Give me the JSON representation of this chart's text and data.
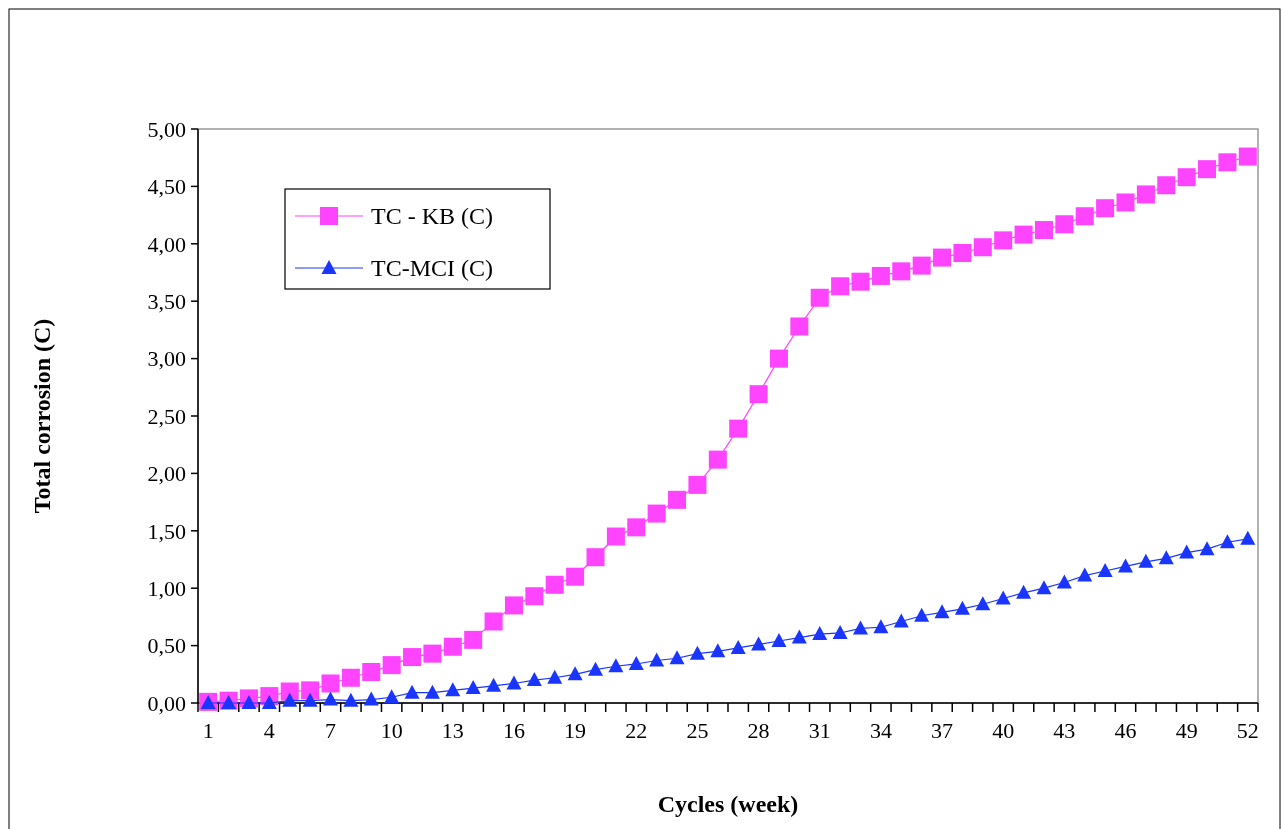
{
  "chart_data": {
    "type": "line",
    "xlabel": "Cycles (week)",
    "ylabel": "Total corrosion (C)",
    "categories": [
      "1",
      null,
      null,
      "4",
      null,
      null,
      "7",
      null,
      null,
      "10",
      null,
      null,
      "13",
      null,
      null,
      "16",
      null,
      null,
      "19",
      null,
      null,
      "22",
      null,
      null,
      "25",
      null,
      null,
      "28",
      null,
      null,
      "31",
      null,
      null,
      "34",
      null,
      null,
      "37",
      null,
      null,
      "40",
      null,
      null,
      "43",
      null,
      null,
      "46",
      null,
      null,
      "49",
      null,
      null,
      "52"
    ],
    "series": [
      {
        "name": "TC - KB (C)",
        "color": "#ff44ff",
        "marker": "square",
        "values": [
          0.01,
          0.02,
          0.04,
          0.06,
          0.1,
          0.11,
          0.17,
          0.22,
          0.27,
          0.33,
          0.4,
          0.43,
          0.49,
          0.55,
          0.71,
          0.85,
          0.93,
          1.03,
          1.1,
          1.27,
          1.45,
          1.53,
          1.65,
          1.77,
          1.9,
          2.12,
          2.39,
          2.69,
          3.0,
          3.28,
          3.53,
          3.63,
          3.67,
          3.72,
          3.76,
          3.81,
          3.88,
          3.92,
          3.97,
          4.03,
          4.08,
          4.12,
          4.17,
          4.24,
          4.31,
          4.36,
          4.43,
          4.51,
          4.58,
          4.65,
          4.71,
          4.76
        ]
      },
      {
        "name": "TC-MCI (C)",
        "color": "#1a35ff",
        "marker": "triangle",
        "values": [
          0,
          0,
          0,
          0,
          0.02,
          0.02,
          0.03,
          0.02,
          0.03,
          0.05,
          0.09,
          0.09,
          0.11,
          0.13,
          0.15,
          0.17,
          0.2,
          0.22,
          0.25,
          0.29,
          0.32,
          0.34,
          0.37,
          0.39,
          0.43,
          0.45,
          0.48,
          0.51,
          0.54,
          0.57,
          0.6,
          0.61,
          0.65,
          0.66,
          0.71,
          0.76,
          0.79,
          0.82,
          0.86,
          0.91,
          0.96,
          1.0,
          1.05,
          1.11,
          1.15,
          1.19,
          1.23,
          1.26,
          1.31,
          1.34,
          1.4,
          1.43
        ]
      }
    ],
    "ylim": [
      0,
      5
    ],
    "yticks": [
      {
        "value": 0,
        "label": "0,00"
      },
      {
        "value": 0.5,
        "label": "0,50"
      },
      {
        "value": 1,
        "label": "1,00"
      },
      {
        "value": 1.5,
        "label": "1,50"
      },
      {
        "value": 2,
        "label": "2,00"
      },
      {
        "value": 2.5,
        "label": "2,50"
      },
      {
        "value": 3,
        "label": "3,00"
      },
      {
        "value": 3.5,
        "label": "3,50"
      },
      {
        "value": 4,
        "label": "4,00"
      },
      {
        "value": 4.5,
        "label": "4,50"
      },
      {
        "value": 5,
        "label": "5,00"
      }
    ],
    "grid": false,
    "legend": "top left"
  }
}
